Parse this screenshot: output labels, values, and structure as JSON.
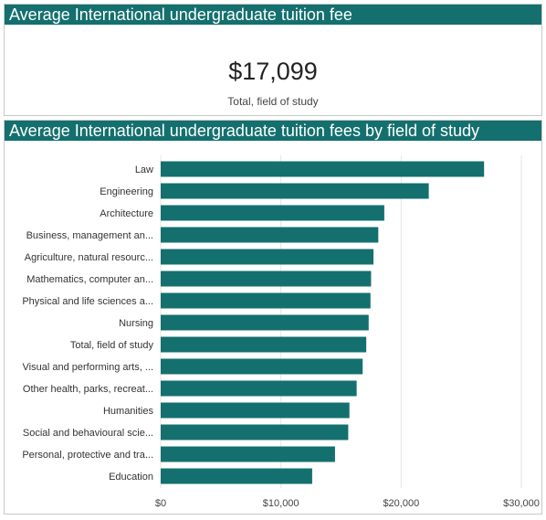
{
  "colors": {
    "header_bg": "#14706e",
    "bar": "#14706e"
  },
  "kpi": {
    "title": "Average International undergraduate tuition fee",
    "value": "$17,099",
    "label": "Total, field of study"
  },
  "chart": {
    "title": "Average International undergraduate tuition fees by field of study"
  },
  "chart_data": {
    "type": "bar",
    "orientation": "horizontal",
    "title": "Average International undergraduate tuition fees by field of study",
    "xlabel": "",
    "ylabel": "",
    "xlim": [
      0,
      30000
    ],
    "grid": true,
    "ticks": [
      {
        "value": 0,
        "label": "$0"
      },
      {
        "value": 10000,
        "label": "$10,000"
      },
      {
        "value": 20000,
        "label": "$20,000"
      },
      {
        "value": 30000,
        "label": "$30,000"
      }
    ],
    "categories": [
      "Law",
      "Engineering",
      "Architecture",
      "Business, management an...",
      "Agriculture, natural resourc...",
      "Mathematics, computer an...",
      "Physical and life sciences a...",
      "Nursing",
      "Total, field of study",
      "Visual and performing arts, ...",
      "Other health, parks, recreat...",
      "Humanities",
      "Social and behavioural scie...",
      "Personal, protective and tra...",
      "Education"
    ],
    "values": [
      26900,
      22300,
      18600,
      18100,
      17700,
      17500,
      17450,
      17300,
      17099,
      16800,
      16300,
      15700,
      15600,
      14500,
      12600
    ]
  }
}
